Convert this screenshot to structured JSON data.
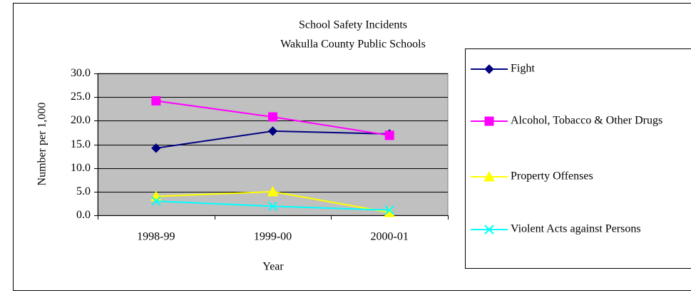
{
  "chart_data": {
    "type": "line",
    "title": "School Safety Incidents",
    "subtitle": "Wakulla County Public Schools",
    "xlabel": "Year",
    "ylabel": "Number per 1,000",
    "categories": [
      "1998-99",
      "1999-00",
      "2000-01"
    ],
    "series": [
      {
        "name": "Fight",
        "color": "#000080",
        "marker": "diamond",
        "values": [
          14.2,
          17.8,
          17.2
        ]
      },
      {
        "name": "Alcohol, Tobacco & Other Drugs",
        "color": "#ff00ff",
        "marker": "square",
        "values": [
          24.2,
          20.8,
          16.9
        ]
      },
      {
        "name": "Property Offenses",
        "color": "#ffff00",
        "marker": "triangle",
        "values": [
          4.0,
          5.0,
          0.6
        ]
      },
      {
        "name": "Violent Acts against Persons",
        "color": "#00ffff",
        "marker": "x",
        "values": [
          3.0,
          1.9,
          1.1
        ]
      }
    ],
    "ylim": [
      0,
      30
    ],
    "yticks": [
      {
        "value": 0,
        "label": "0.0"
      },
      {
        "value": 5,
        "label": "5.0"
      },
      {
        "value": 10,
        "label": "10.0"
      },
      {
        "value": 15,
        "label": "15.0"
      },
      {
        "value": 20,
        "label": "20.0"
      },
      {
        "value": 25,
        "label": "25.0"
      },
      {
        "value": 30,
        "label": "30.0"
      }
    ],
    "grid": true,
    "plot_background": "#c0c0c0",
    "legend": "right"
  }
}
